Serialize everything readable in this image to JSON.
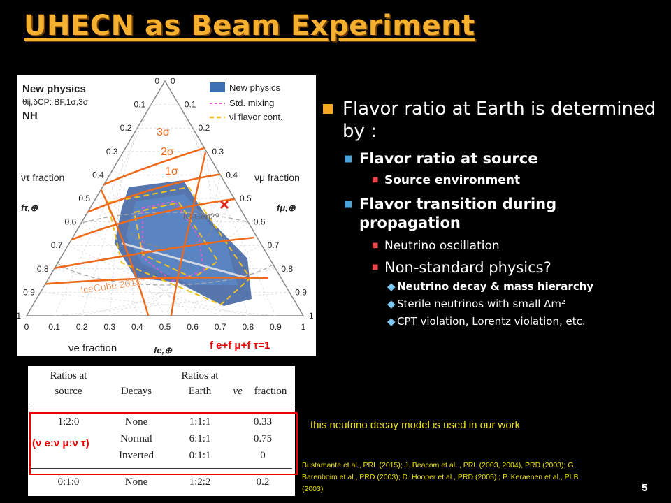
{
  "slide": {
    "title": "UHECN as Beam Experiment",
    "page_number": "5"
  },
  "figure": {
    "header_line1": "New physics",
    "header_line2": "θij,δCP: BF,1σ,3σ",
    "header_line3": "NH",
    "legend": [
      {
        "label": "New physics",
        "color": "#3f6fb3"
      },
      {
        "label": "Std. mixing",
        "color": "#e35bd0"
      },
      {
        "label": "νl flavor cont.",
        "color": "#f0c020"
      }
    ],
    "sigma_labels": [
      "3σ",
      "2σ",
      "1σ"
    ],
    "icecube_label": "IceCube 2015",
    "icgen2_label": "IC-Gen2?",
    "f_tau_label": "fτ,⊕",
    "f_mu_label": "fμ,⊕",
    "f_e_label": "fe,⊕",
    "ticks_left": [
      "1",
      "0.9",
      "0.8",
      "0.7",
      "0.6",
      "0.5",
      "0.4",
      "0.3",
      "0.2",
      "0.1",
      "0"
    ],
    "ticks_right": [
      "0",
      "0.1",
      "0.2",
      "0.3",
      "0.4",
      "0.5",
      "0.6",
      "0.7",
      "0.8",
      "0.9",
      "1"
    ],
    "ticks_bottom": [
      "0",
      "0.1",
      "0.2",
      "0.3",
      "0.4",
      "0.5",
      "0.6",
      "0.7",
      "0.8",
      "0.9",
      "1"
    ],
    "nu_tau_fraction": "ντ fraction",
    "nu_mu_fraction": "νμ fraction",
    "nu_e_fraction": "νe fraction",
    "f_sum": "f e+f μ+f τ=1"
  },
  "table": {
    "headers": [
      [
        "Ratios at",
        "source"
      ],
      [
        "",
        "Decays"
      ],
      [
        "Ratios at",
        "Earth"
      ],
      [
        "νe",
        "fraction"
      ]
    ],
    "rows": [
      [
        "1:2:0",
        "None",
        "1:1:1",
        "0.33"
      ],
      [
        "",
        "Normal",
        "6:1:1",
        "0.75"
      ],
      [
        "",
        "Inverted",
        "0:1:1",
        "0"
      ],
      [
        "0:1:0",
        "None",
        "1:2:2",
        "0.2"
      ]
    ],
    "ratio_note": "(ν e:ν μ:ν τ)"
  },
  "bullets": {
    "l1": "Flavor ratio at Earth is determined by :",
    "l2a": "Flavor ratio at source",
    "l3a": "Source environment",
    "l2b": "Flavor transition during propagation",
    "l3b": "Neutrino oscillation",
    "l3c": "Non-standard physics?",
    "l4a": "Neutrino decay & mass hierarchy",
    "l4b": "Sterile neutrinos with small Δm²",
    "l4c": "CPT violation, Lorentz violation, etc."
  },
  "work_note": "this neutrino decay model is used in our work",
  "references": "Bustamante et al., PRL (2015); J. Beacom et al. , PRL (2003, 2004), PRD (2003); G. Barenboim et al., PRD (2003); D. Hooper et al., PRD (2005).; P. Keraenen et al., PLB (2003)"
}
